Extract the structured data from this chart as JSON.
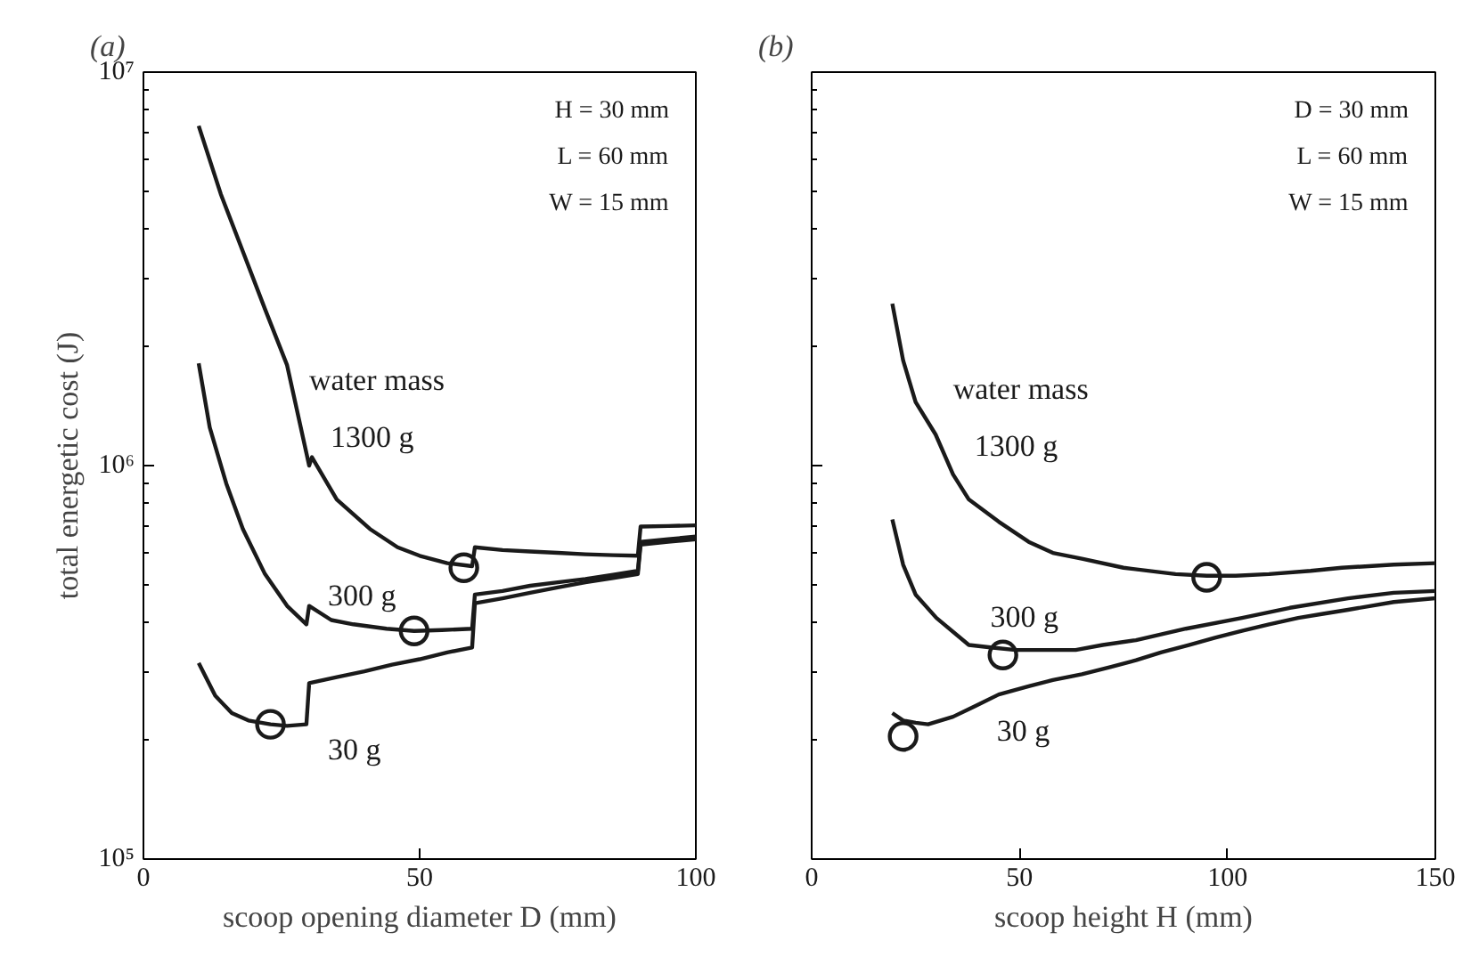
{
  "chart_data": [
    {
      "type": "line",
      "title": "(a)",
      "xlabel": "scoop opening diameter D (mm)",
      "ylabel": "total energetic cost (J)",
      "log": "y",
      "grid": false,
      "line_style": "solid",
      "xlim": [
        0,
        100
      ],
      "xticks": [
        0,
        50,
        100
      ],
      "ylim": [
        100000,
        10000000
      ],
      "yticks": [
        {
          "value": 100000,
          "label": "10⁵"
        },
        {
          "value": 1000000,
          "label": "10⁶"
        },
        {
          "value": 10000000,
          "label": "10⁷"
        }
      ],
      "series": [
        {
          "name": "1300 g",
          "color": "#1a1a1a",
          "x": [
            10,
            14,
            18,
            22,
            26,
            30,
            30.5,
            35,
            41,
            46,
            50,
            55,
            59.5,
            60,
            65,
            70,
            75,
            80,
            85,
            89.5,
            90,
            95,
            100
          ],
          "values": [
            7300000,
            4900000,
            3500000,
            2500000,
            1800000,
            1000000,
            1050000,
            820000,
            690000,
            620000,
            590000,
            565000,
            555000,
            620000,
            610000,
            605000,
            600000,
            595000,
            592000,
            590000,
            700000,
            702000,
            705000
          ]
        },
        {
          "name": "300 g",
          "color": "#1a1a1a",
          "x": [
            10,
            12,
            15,
            18,
            22,
            26,
            29.5,
            30,
            34,
            38,
            44,
            49,
            54,
            59.5,
            60,
            65,
            70,
            75,
            80,
            85,
            89.5,
            90,
            95,
            100
          ],
          "values": [
            1820000,
            1250000,
            900000,
            690000,
            530000,
            440000,
            395000,
            440000,
            405000,
            395000,
            385000,
            380000,
            382000,
            385000,
            470000,
            480000,
            495000,
            505000,
            515000,
            528000,
            540000,
            640000,
            650000,
            660000
          ]
        },
        {
          "name": "30 g",
          "color": "#1a1a1a",
          "x": [
            10,
            13,
            16,
            19,
            23,
            26,
            29.5,
            30,
            35,
            40,
            45,
            50,
            55,
            59.5,
            60,
            65,
            70,
            75,
            80,
            85,
            89.5,
            90,
            95,
            100
          ],
          "values": [
            315000,
            260000,
            235000,
            225000,
            220000,
            218000,
            220000,
            280000,
            290000,
            300000,
            312000,
            322000,
            335000,
            345000,
            447000,
            460000,
            475000,
            490000,
            505000,
            518000,
            530000,
            630000,
            640000,
            650000
          ]
        },
        {
          "type": "scatter",
          "marker": "circle",
          "color": "#1a1a1a",
          "x": [
            58,
            49,
            23
          ],
          "values": [
            550000,
            380000,
            220000
          ]
        }
      ],
      "legend_title": "water mass",
      "annotations": [
        "H = 30 mm",
        "L = 60 mm",
        "W = 15 mm"
      ]
    },
    {
      "type": "line",
      "title": "(b)",
      "xlabel": "scoop height H (mm)",
      "log": "y",
      "grid": false,
      "line_style": "solid",
      "tick_labels": "x",
      "xlim": [
        0,
        150
      ],
      "xticks": [
        0,
        50,
        100,
        150
      ],
      "ylim": [
        100000,
        10000000
      ],
      "yticks": [
        100000,
        1000000,
        10000000
      ],
      "series": [
        {
          "name": "1300 g",
          "color": "#1a1a1a",
          "x": [
            19.4,
            22,
            25,
            29.8,
            34,
            37.8,
            45,
            52.2,
            58,
            65,
            75,
            87.5,
            95,
            102,
            110,
            120,
            127.5,
            140,
            150
          ],
          "values": [
            2580000,
            1850000,
            1450000,
            1200000,
            950000,
            820000,
            720000,
            640000,
            600000,
            580000,
            550000,
            530000,
            525000,
            525000,
            530000,
            540000,
            550000,
            560000,
            565000
          ]
        },
        {
          "name": "300 g",
          "color": "#1a1a1a",
          "x": [
            19.4,
            22,
            25,
            30,
            37.8,
            43,
            49,
            56,
            63.5,
            70,
            78,
            90,
            103.5,
            115,
            129,
            140,
            150
          ],
          "values": [
            730000,
            560000,
            470000,
            410000,
            350000,
            345000,
            340000,
            340000,
            340000,
            350000,
            360000,
            385000,
            410000,
            435000,
            460000,
            475000,
            480000
          ]
        },
        {
          "name": "30 g",
          "color": "#1a1a1a",
          "x": [
            19.4,
            22,
            25,
            28,
            34,
            39.4,
            45,
            52.2,
            58,
            65,
            72,
            78,
            84,
            90.7,
            97,
            103.5,
            110,
            117,
            123,
            129,
            140,
            150
          ],
          "values": [
            235000,
            225000,
            222000,
            220000,
            230000,
            245000,
            262000,
            275000,
            285000,
            295000,
            308000,
            320000,
            335000,
            350000,
            365000,
            380000,
            395000,
            410000,
            420000,
            430000,
            450000,
            460000
          ]
        },
        {
          "type": "scatter",
          "marker": "circle",
          "color": "#1a1a1a",
          "x": [
            95,
            46,
            22
          ],
          "values": [
            520000,
            330000,
            205000
          ]
        }
      ],
      "legend_title": "water mass",
      "annotations": [
        "D = 30 mm",
        "L = 60 mm",
        "W = 15 mm"
      ]
    }
  ]
}
